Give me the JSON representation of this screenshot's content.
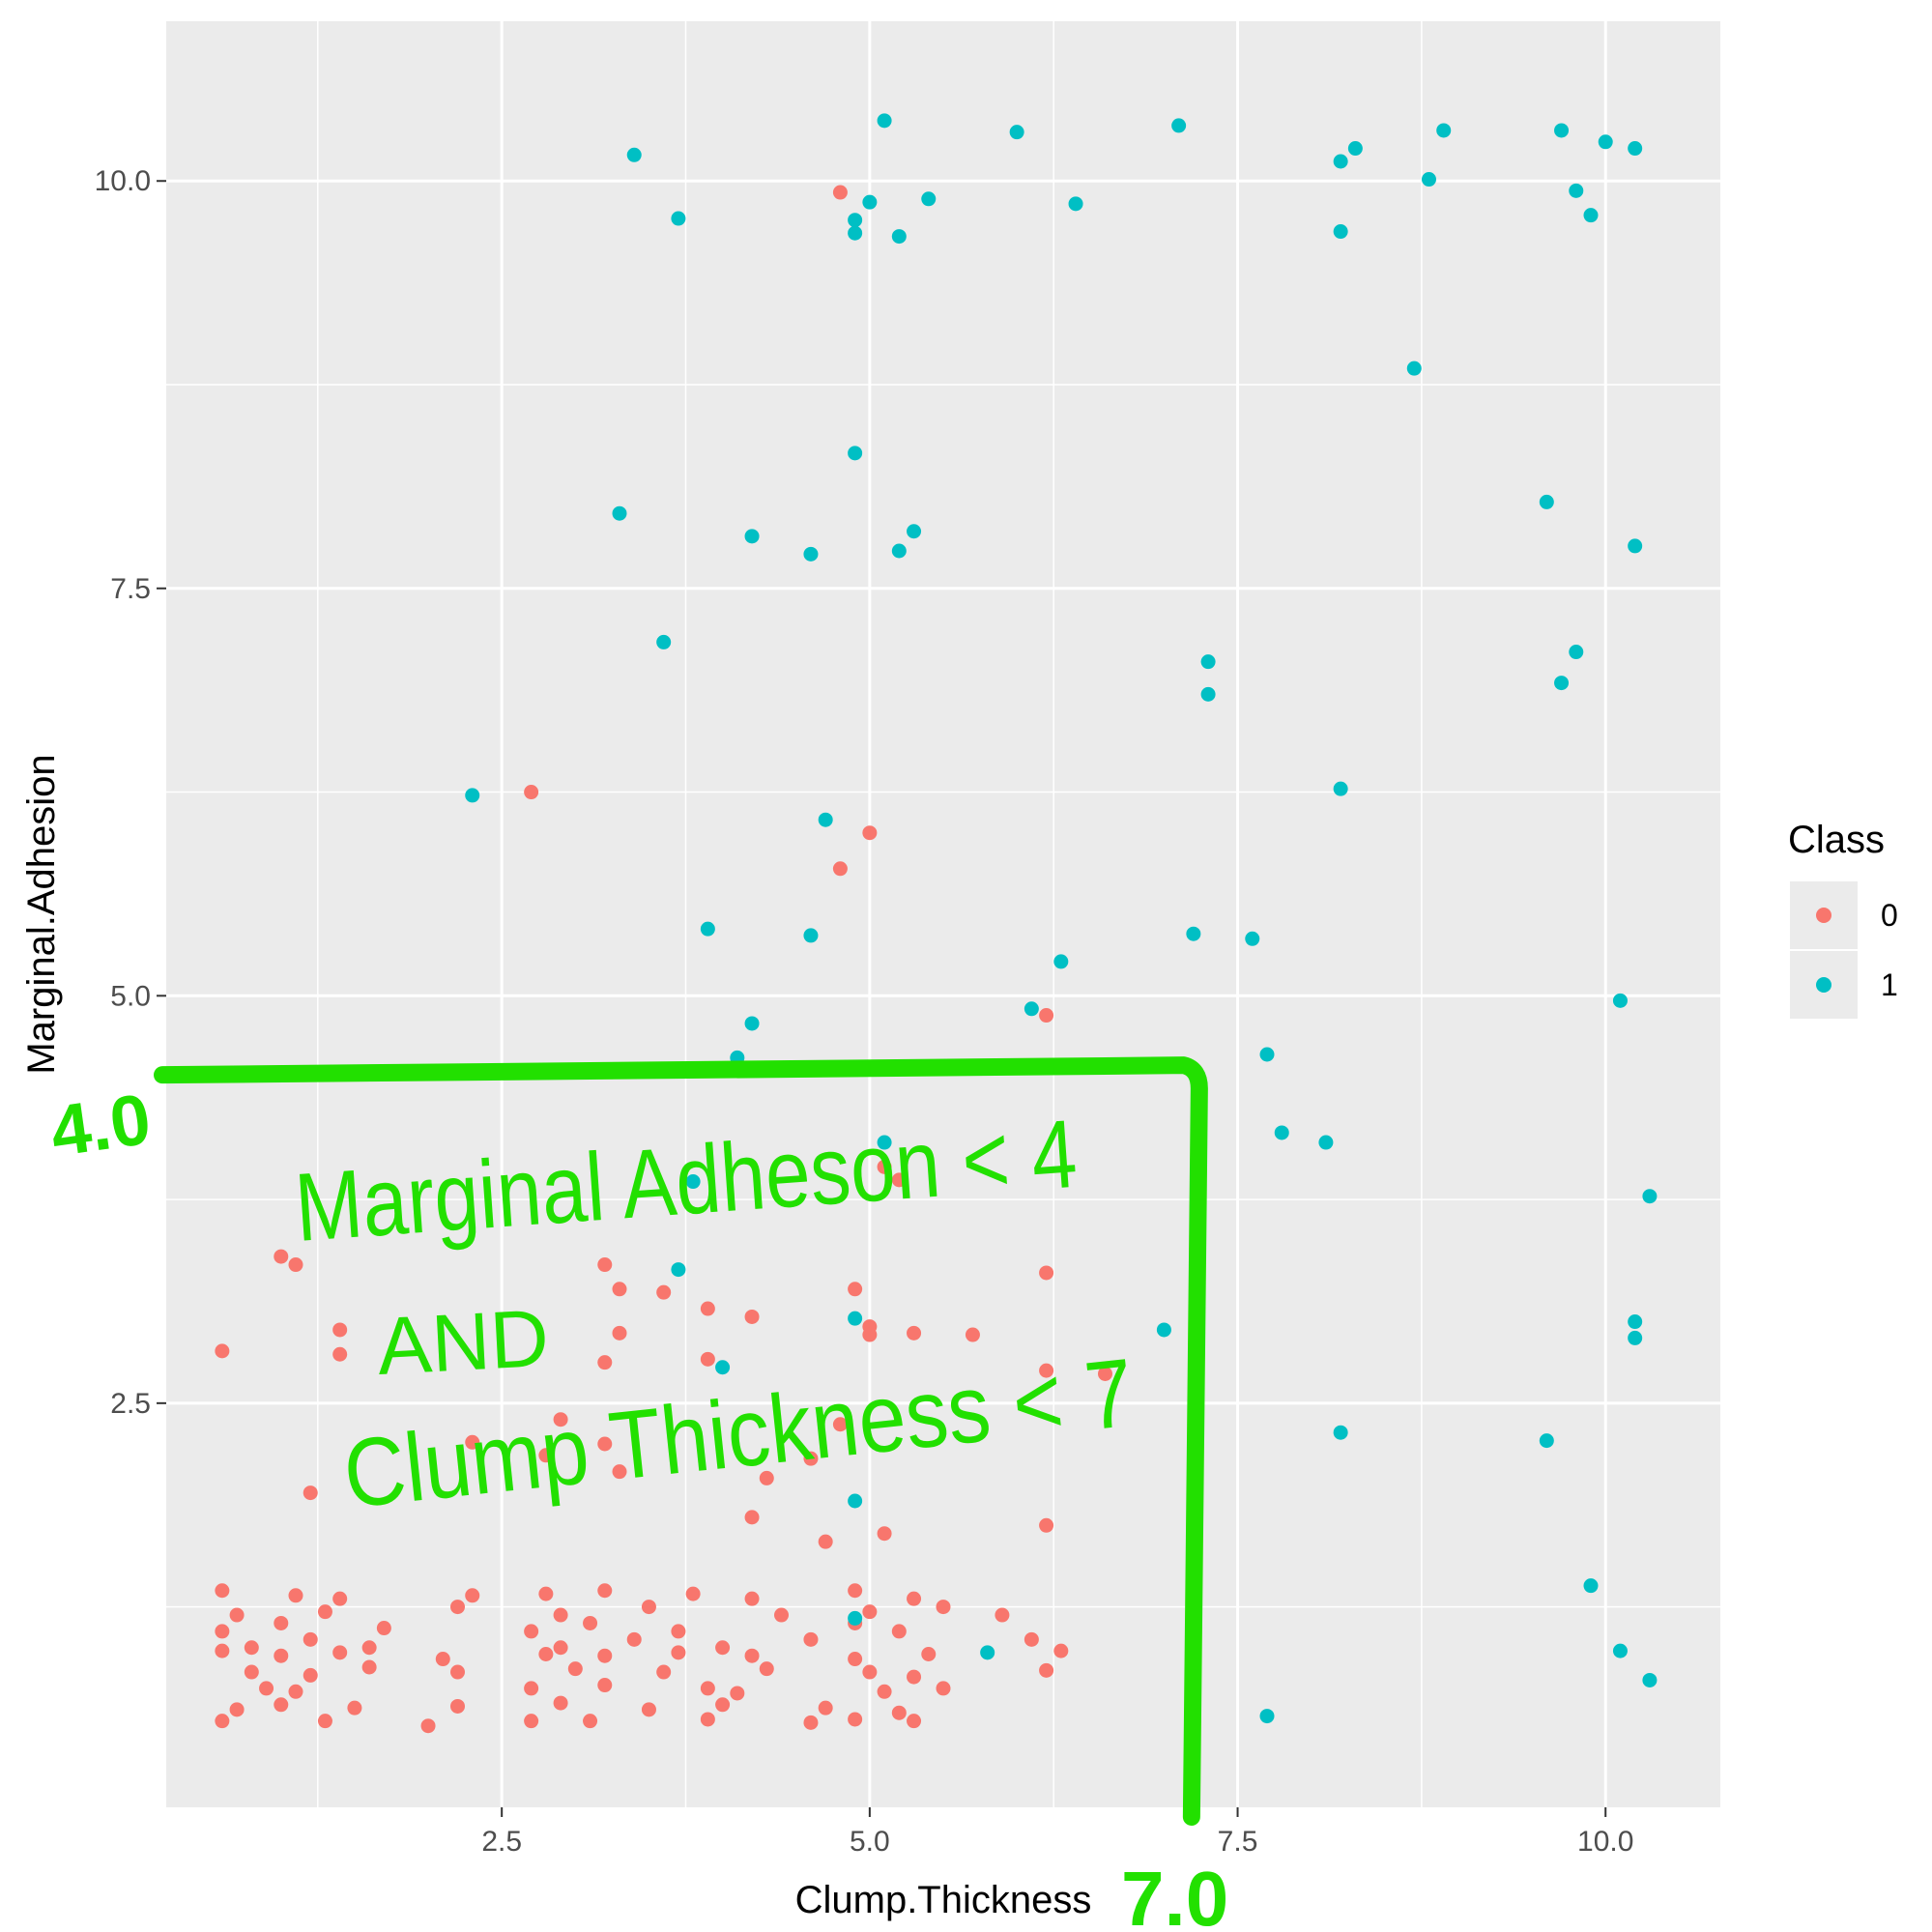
{
  "chart_data": {
    "type": "scatter",
    "xlabel": "Clump.Thickness",
    "ylabel": "Marginal.Adhesion",
    "xlim": [
      0.22,
      10.78
    ],
    "ylim": [
      0.02,
      10.98
    ],
    "x_ticks": [
      2.5,
      5.0,
      7.5,
      10.0
    ],
    "x_tick_labels": [
      "2.5",
      "5.0",
      "7.5",
      "10.0"
    ],
    "y_ticks": [
      2.5,
      5.0,
      7.5,
      10.0
    ],
    "y_tick_labels": [
      "2.5",
      "5.0",
      "7.5",
      "10.0"
    ],
    "grid": true,
    "legend": {
      "title": "Class",
      "placement": "right",
      "entries": [
        {
          "label": "0",
          "color": "#F8766D"
        },
        {
          "label": "1",
          "color": "#00BFC4"
        }
      ]
    },
    "series": [
      {
        "name": "0",
        "color": "#F8766D",
        "points": [
          [
            4.8,
            9.93
          ],
          [
            2.7,
            6.25
          ],
          [
            5.0,
            6.0
          ],
          [
            4.8,
            5.78
          ],
          [
            6.2,
            4.88
          ],
          [
            5.1,
            3.95
          ],
          [
            5.2,
            3.87
          ],
          [
            1.0,
            3.4
          ],
          [
            1.1,
            3.35
          ],
          [
            3.2,
            3.35
          ],
          [
            3.3,
            3.2
          ],
          [
            3.6,
            3.18
          ],
          [
            6.2,
            3.3
          ],
          [
            4.9,
            3.2
          ],
          [
            3.9,
            3.08
          ],
          [
            4.2,
            3.03
          ],
          [
            0.6,
            2.82
          ],
          [
            1.4,
            2.95
          ],
          [
            1.4,
            2.8
          ],
          [
            3.3,
            2.93
          ],
          [
            5.0,
            2.97
          ],
          [
            5.0,
            2.92
          ],
          [
            5.3,
            2.93
          ],
          [
            5.7,
            2.92
          ],
          [
            3.9,
            2.77
          ],
          [
            3.2,
            2.75
          ],
          [
            6.2,
            2.7
          ],
          [
            6.6,
            2.68
          ],
          [
            2.9,
            2.4
          ],
          [
            4.8,
            2.37
          ],
          [
            3.2,
            2.25
          ],
          [
            2.3,
            2.26
          ],
          [
            2.8,
            2.18
          ],
          [
            4.6,
            2.16
          ],
          [
            3.3,
            2.08
          ],
          [
            4.3,
            2.04
          ],
          [
            1.2,
            1.95
          ],
          [
            4.2,
            1.8
          ],
          [
            6.2,
            1.75
          ],
          [
            5.1,
            1.7
          ],
          [
            4.7,
            1.65
          ],
          [
            0.6,
            1.35
          ],
          [
            1.1,
            1.32
          ],
          [
            1.4,
            1.3
          ],
          [
            2.3,
            1.32
          ],
          [
            2.8,
            1.33
          ],
          [
            3.2,
            1.35
          ],
          [
            3.8,
            1.33
          ],
          [
            4.2,
            1.3
          ],
          [
            4.9,
            1.35
          ],
          [
            5.3,
            1.3
          ],
          [
            0.7,
            1.2
          ],
          [
            1.3,
            1.22
          ],
          [
            2.2,
            1.25
          ],
          [
            2.9,
            1.2
          ],
          [
            3.5,
            1.25
          ],
          [
            4.4,
            1.2
          ],
          [
            5.0,
            1.22
          ],
          [
            5.5,
            1.25
          ],
          [
            0.6,
            1.1
          ],
          [
            1.0,
            1.15
          ],
          [
            1.7,
            1.12
          ],
          [
            2.7,
            1.1
          ],
          [
            3.1,
            1.15
          ],
          [
            3.7,
            1.1
          ],
          [
            4.9,
            1.15
          ],
          [
            5.2,
            1.1
          ],
          [
            5.9,
            1.2
          ],
          [
            0.8,
            1.0
          ],
          [
            1.2,
            1.05
          ],
          [
            1.6,
            1.0
          ],
          [
            2.9,
            1.0
          ],
          [
            3.4,
            1.05
          ],
          [
            4.0,
            1.0
          ],
          [
            4.6,
            1.05
          ],
          [
            6.3,
            0.98
          ],
          [
            0.6,
            0.98
          ],
          [
            1.0,
            0.95
          ],
          [
            1.4,
            0.97
          ],
          [
            2.1,
            0.93
          ],
          [
            2.8,
            0.96
          ],
          [
            3.2,
            0.95
          ],
          [
            3.7,
            0.97
          ],
          [
            4.2,
            0.95
          ],
          [
            4.9,
            0.93
          ],
          [
            5.4,
            0.96
          ],
          [
            6.1,
            1.05
          ],
          [
            0.8,
            0.85
          ],
          [
            1.2,
            0.83
          ],
          [
            1.6,
            0.88
          ],
          [
            2.2,
            0.85
          ],
          [
            3.0,
            0.87
          ],
          [
            3.6,
            0.85
          ],
          [
            4.3,
            0.87
          ],
          [
            5.0,
            0.85
          ],
          [
            5.3,
            0.82
          ],
          [
            6.2,
            0.86
          ],
          [
            0.9,
            0.75
          ],
          [
            1.1,
            0.73
          ],
          [
            2.7,
            0.75
          ],
          [
            3.2,
            0.77
          ],
          [
            3.9,
            0.75
          ],
          [
            4.1,
            0.72
          ],
          [
            5.1,
            0.73
          ],
          [
            5.5,
            0.75
          ],
          [
            0.7,
            0.62
          ],
          [
            1.0,
            0.65
          ],
          [
            1.5,
            0.63
          ],
          [
            2.2,
            0.64
          ],
          [
            2.9,
            0.66
          ],
          [
            3.5,
            0.62
          ],
          [
            4.0,
            0.65
          ],
          [
            4.7,
            0.63
          ],
          [
            5.2,
            0.6
          ],
          [
            0.6,
            0.55
          ],
          [
            1.3,
            0.55
          ],
          [
            2.0,
            0.52
          ],
          [
            2.7,
            0.55
          ],
          [
            3.1,
            0.55
          ],
          [
            3.9,
            0.56
          ],
          [
            4.6,
            0.54
          ],
          [
            4.9,
            0.56
          ],
          [
            5.3,
            0.55
          ]
        ]
      },
      {
        "name": "1",
        "color": "#00BFC4",
        "points": [
          [
            5.1,
            10.37
          ],
          [
            3.4,
            10.16
          ],
          [
            6.0,
            10.3
          ],
          [
            7.1,
            10.34
          ],
          [
            8.9,
            10.31
          ],
          [
            8.3,
            10.2
          ],
          [
            9.7,
            10.31
          ],
          [
            10.0,
            10.24
          ],
          [
            10.2,
            10.2
          ],
          [
            8.2,
            10.12
          ],
          [
            8.8,
            10.01
          ],
          [
            9.8,
            9.94
          ],
          [
            5.0,
            9.87
          ],
          [
            5.4,
            9.89
          ],
          [
            6.4,
            9.86
          ],
          [
            3.7,
            9.77
          ],
          [
            4.9,
            9.76
          ],
          [
            9.9,
            9.79
          ],
          [
            4.9,
            9.68
          ],
          [
            5.2,
            9.66
          ],
          [
            8.2,
            9.69
          ],
          [
            8.7,
            8.85
          ],
          [
            4.9,
            8.33
          ],
          [
            9.6,
            8.03
          ],
          [
            3.3,
            7.96
          ],
          [
            4.2,
            7.82
          ],
          [
            5.3,
            7.85
          ],
          [
            4.6,
            7.71
          ],
          [
            5.2,
            7.73
          ],
          [
            10.2,
            7.76
          ],
          [
            3.6,
            7.17
          ],
          [
            7.3,
            7.05
          ],
          [
            9.8,
            7.11
          ],
          [
            7.3,
            6.85
          ],
          [
            9.7,
            6.92
          ],
          [
            2.3,
            6.23
          ],
          [
            8.2,
            6.27
          ],
          [
            4.7,
            6.08
          ],
          [
            3.9,
            5.41
          ],
          [
            4.6,
            5.37
          ],
          [
            7.2,
            5.38
          ],
          [
            7.6,
            5.35
          ],
          [
            6.3,
            5.21
          ],
          [
            10.1,
            4.97
          ],
          [
            6.1,
            4.92
          ],
          [
            4.2,
            4.83
          ],
          [
            4.1,
            4.62
          ],
          [
            7.7,
            4.64
          ],
          [
            5.1,
            4.1
          ],
          [
            7.8,
            4.16
          ],
          [
            8.1,
            4.1
          ],
          [
            3.8,
            3.86
          ],
          [
            10.3,
            3.77
          ],
          [
            3.7,
            3.32
          ],
          [
            4.9,
            3.02
          ],
          [
            7.0,
            2.95
          ],
          [
            10.2,
            3.0
          ],
          [
            10.2,
            2.9
          ],
          [
            4.0,
            2.72
          ],
          [
            4.9,
            1.9
          ],
          [
            8.2,
            2.32
          ],
          [
            9.6,
            2.27
          ],
          [
            9.9,
            1.38
          ],
          [
            4.9,
            1.18
          ],
          [
            5.8,
            0.97
          ],
          [
            10.1,
            0.98
          ],
          [
            10.3,
            0.8
          ],
          [
            7.7,
            0.58
          ]
        ]
      }
    ],
    "annotations": {
      "y_marker": "4.0",
      "x_marker": "7.0",
      "rule_line_1": "Marginal Adheson < 4",
      "rule_line_2": "AND",
      "rule_line_3": "Clump Thickness < 7",
      "boundary_x": 7.2,
      "boundary_y": 4.55,
      "color": "#22e000"
    }
  }
}
